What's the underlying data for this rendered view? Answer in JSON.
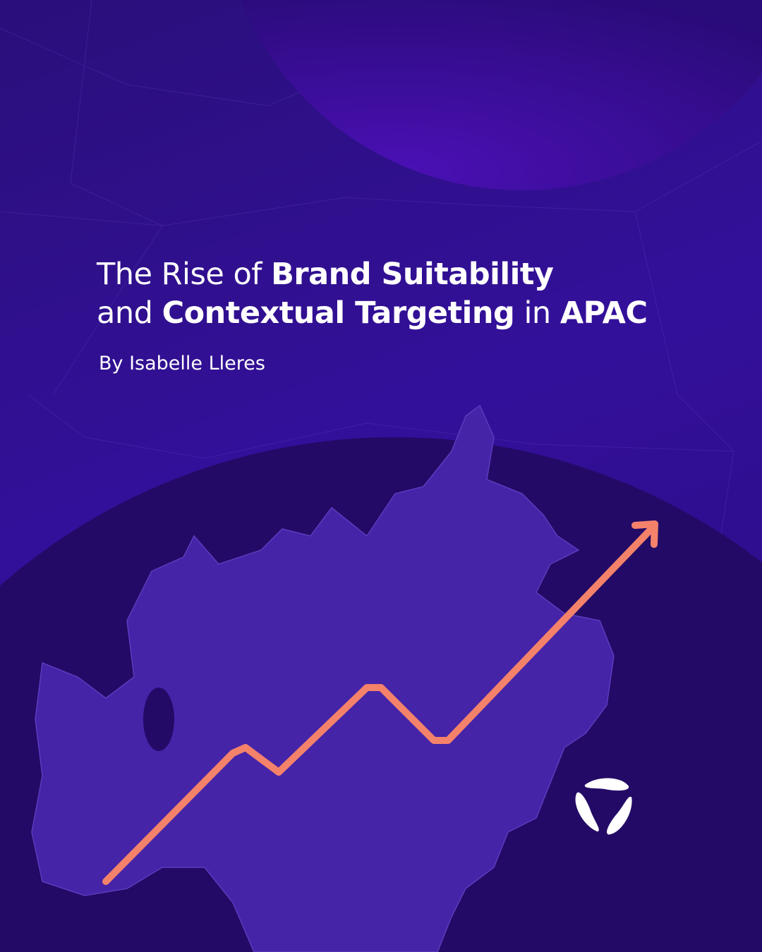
{
  "title": {
    "part1": "The Rise of ",
    "bold1": "Brand Suitability",
    "part2": "and ",
    "bold2": "Contextual Targeting",
    "part3": " in ",
    "bold3": "APAC"
  },
  "author": "By Isabelle Lleres",
  "colors": {
    "background": "#2e0f8c",
    "globe": "#230a66",
    "map": "#4524a8",
    "arrow": "#f4826a",
    "accent_circle": "#4a0fb0"
  },
  "icons": {
    "logo": "three-petal-logo",
    "arrow": "trend-up-arrow"
  }
}
